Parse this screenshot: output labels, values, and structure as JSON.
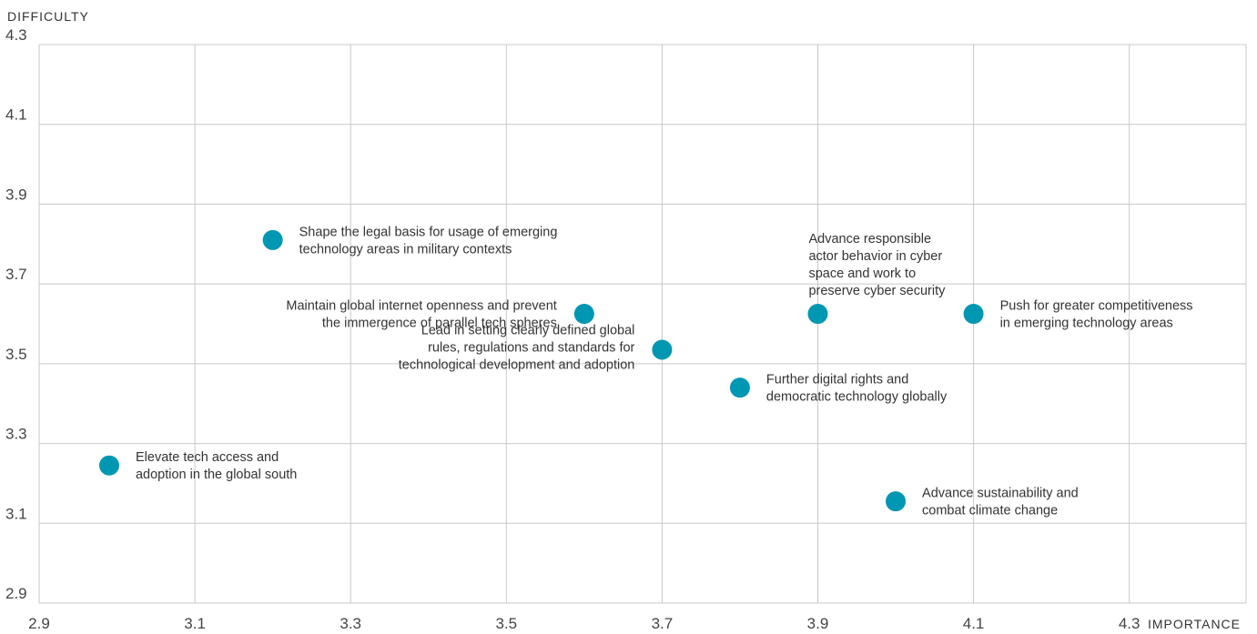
{
  "chart_data": {
    "type": "scatter",
    "title": "",
    "xlabel": "IMPORTANCE",
    "ylabel": "DIFFICULTY",
    "xlim": [
      2.9,
      4.45
    ],
    "ylim": [
      2.9,
      4.3
    ],
    "x_ticks": [
      "2.9",
      "3.1",
      "3.3",
      "3.5",
      "3.7",
      "3.9",
      "4.1",
      "4.3"
    ],
    "y_ticks": [
      "2.9",
      "3.1",
      "3.3",
      "3.5",
      "3.7",
      "3.9",
      "4.1",
      "4.3"
    ],
    "grid": true,
    "point_color": "#0097b2",
    "points": [
      {
        "x": 3.2,
        "y": 3.81,
        "label_lines": [
          "Shape the legal basis for usage of emerging",
          "technology areas in military contexts"
        ],
        "label_side": "right"
      },
      {
        "x": 3.6,
        "y": 3.625,
        "label_lines": [
          "Maintain global internet openness and prevent",
          "the immergence of parallel tech spheres"
        ],
        "label_side": "left"
      },
      {
        "x": 3.7,
        "y": 3.535,
        "label_lines": [
          "Lead in setting clearly defined global",
          "rules, regulations and standards for",
          "technological development and adoption"
        ],
        "label_side": "left"
      },
      {
        "x": 3.9,
        "y": 3.625,
        "label_lines": [
          "Advance responsible",
          "actor behavior in cyber",
          "space and work to",
          "preserve cyber security"
        ],
        "label_side": "above"
      },
      {
        "x": 4.1,
        "y": 3.625,
        "label_lines": [
          "Push for greater competitiveness",
          "in emerging technology areas"
        ],
        "label_side": "right"
      },
      {
        "x": 3.8,
        "y": 3.44,
        "label_lines": [
          "Further digital rights and",
          "democratic technology globally"
        ],
        "label_side": "right"
      },
      {
        "x": 2.99,
        "y": 3.245,
        "label_lines": [
          "Elevate tech access and",
          "adoption in the global south"
        ],
        "label_side": "right"
      },
      {
        "x": 4.0,
        "y": 3.155,
        "label_lines": [
          "Advance sustainability and",
          "combat climate change"
        ],
        "label_side": "right"
      }
    ]
  }
}
